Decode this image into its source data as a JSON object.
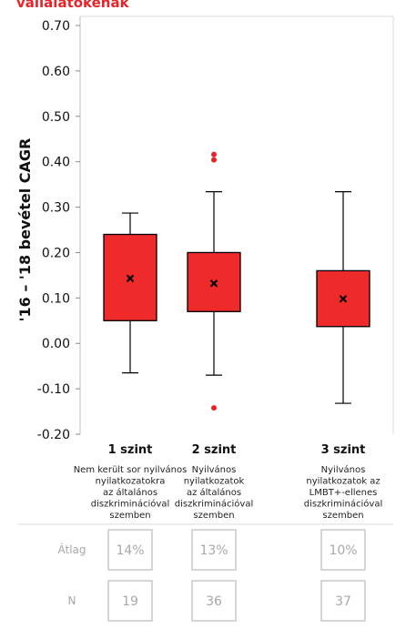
{
  "title": "vállalatokénak",
  "chart_data": {
    "type": "boxplot",
    "ylabel": "'16 – '18 bevétel CAGR",
    "ylim": [
      -0.2,
      0.7
    ],
    "yticks": [
      "0.70",
      "0.60",
      "0.50",
      "0.40",
      "0.30",
      "0.20",
      "0.10",
      "0.00",
      "-0.10",
      "-0.20"
    ],
    "ytick_values": [
      0.7,
      0.6,
      0.5,
      0.4,
      0.3,
      0.2,
      0.1,
      0.0,
      -0.1,
      -0.2
    ],
    "box_color": "#ee2a2a",
    "outlier_color": "#e8242a",
    "categories": [
      {
        "label": "1 szint",
        "description": [
          "Nem került sor nyilvános",
          "nyilatkozatokra",
          "az általános",
          "diszkriminációval",
          "szemben"
        ],
        "whisker_low": -0.065,
        "q1": 0.05,
        "q3": 0.24,
        "whisker_high": 0.287,
        "mean": 0.143,
        "outliers": []
      },
      {
        "label": "2 szint",
        "description": [
          "Nyilvános",
          "nyilatkozatok",
          "az általános",
          "diszkriminációval",
          "szemben"
        ],
        "whisker_low": -0.07,
        "q1": 0.07,
        "q3": 0.2,
        "whisker_high": 0.334,
        "mean": 0.132,
        "outliers": [
          0.416,
          0.404,
          -0.142
        ]
      },
      {
        "label": "3 szint",
        "description": [
          "Nyilvános",
          "nyilatkozatok az",
          "LMBT+-ellenes",
          "diszkriminációval",
          "szemben"
        ],
        "whisker_low": -0.132,
        "q1": 0.037,
        "q3": 0.16,
        "whisker_high": 0.334,
        "mean": 0.098,
        "outliers": []
      }
    ]
  },
  "summary": {
    "mean_label": "Átlag",
    "n_label": "N",
    "means": [
      "14%",
      "13%",
      "10%"
    ],
    "counts": [
      "19",
      "36",
      "37"
    ]
  }
}
